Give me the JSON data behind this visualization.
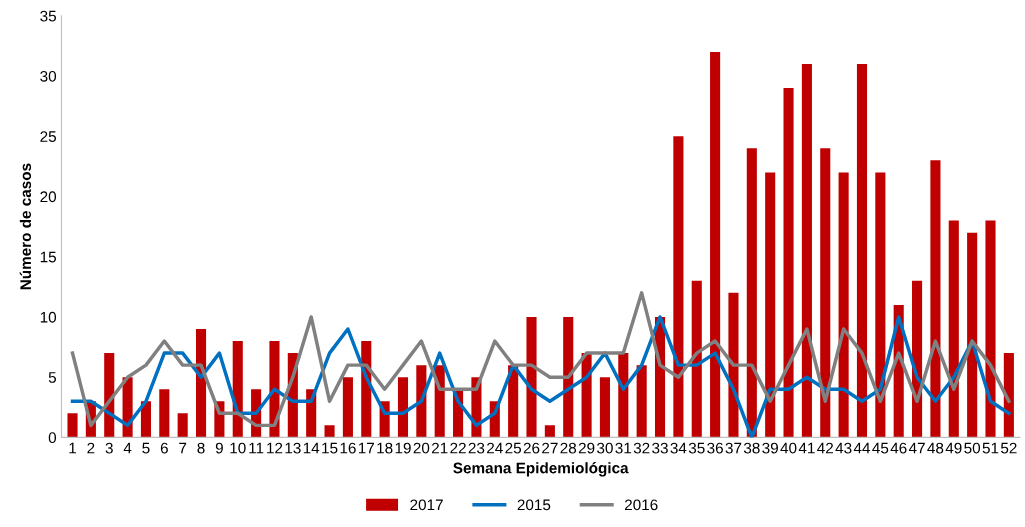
{
  "chart_data": {
    "type": "bar",
    "xlabel": "Semana Epidemiológica",
    "ylabel": "Número de casos",
    "categories": [
      "1",
      "2",
      "3",
      "4",
      "5",
      "6",
      "7",
      "8",
      "9",
      "10",
      "11",
      "12",
      "13",
      "14",
      "15",
      "16",
      "17",
      "18",
      "19",
      "20",
      "21",
      "22",
      "23",
      "24",
      "25",
      "26",
      "27",
      "28",
      "29",
      "30",
      "31",
      "32",
      "33",
      "34",
      "35",
      "36",
      "37",
      "38",
      "39",
      "40",
      "41",
      "42",
      "43",
      "44",
      "45",
      "46",
      "47",
      "48",
      "49",
      "50",
      "51",
      "52"
    ],
    "series": [
      {
        "name": "2017",
        "color": "#c00000",
        "values": [
          2,
          3,
          7,
          5,
          3,
          4,
          2,
          9,
          3,
          8,
          4,
          8,
          7,
          4,
          1,
          5,
          8,
          3,
          5,
          6,
          6,
          4,
          5,
          3,
          6,
          10,
          1,
          10,
          7,
          5,
          7,
          6,
          10,
          25,
          13,
          32,
          12,
          24,
          22,
          29,
          31,
          24,
          22,
          31,
          22,
          11,
          13,
          23,
          18,
          17,
          18,
          7
        ]
      },
      {
        "name": "2015",
        "type": "line",
        "color": "#0070c0",
        "values": [
          3,
          3,
          2,
          1,
          3,
          7,
          7,
          5,
          7,
          2,
          2,
          4,
          3,
          3,
          7,
          9,
          5,
          2,
          2,
          3,
          7,
          3,
          1,
          2,
          6,
          4,
          3,
          4,
          5,
          7,
          4,
          6,
          10,
          6,
          6,
          7,
          4,
          0,
          4,
          4,
          5,
          4,
          4,
          3,
          4,
          10,
          5,
          3,
          5,
          8,
          3,
          2
        ]
      },
      {
        "name": "2016",
        "type": "line",
        "color": "#808080",
        "values": [
          7,
          1,
          3,
          5,
          6,
          8,
          6,
          6,
          2,
          2,
          1,
          1,
          5,
          10,
          3,
          6,
          6,
          4,
          6,
          8,
          4,
          4,
          4,
          8,
          6,
          6,
          5,
          5,
          7,
          7,
          7,
          12,
          6,
          5,
          7,
          8,
          6,
          6,
          3,
          6,
          9,
          3,
          9,
          7,
          3,
          7,
          3,
          8,
          4,
          8,
          6,
          3
        ]
      }
    ],
    "ylim": [
      0,
      35
    ],
    "yticks": [
      0,
      5,
      10,
      15,
      20,
      25,
      30,
      35
    ],
    "grid": false,
    "legend": "bottom",
    "marker": "none",
    "line_style": "solid"
  }
}
